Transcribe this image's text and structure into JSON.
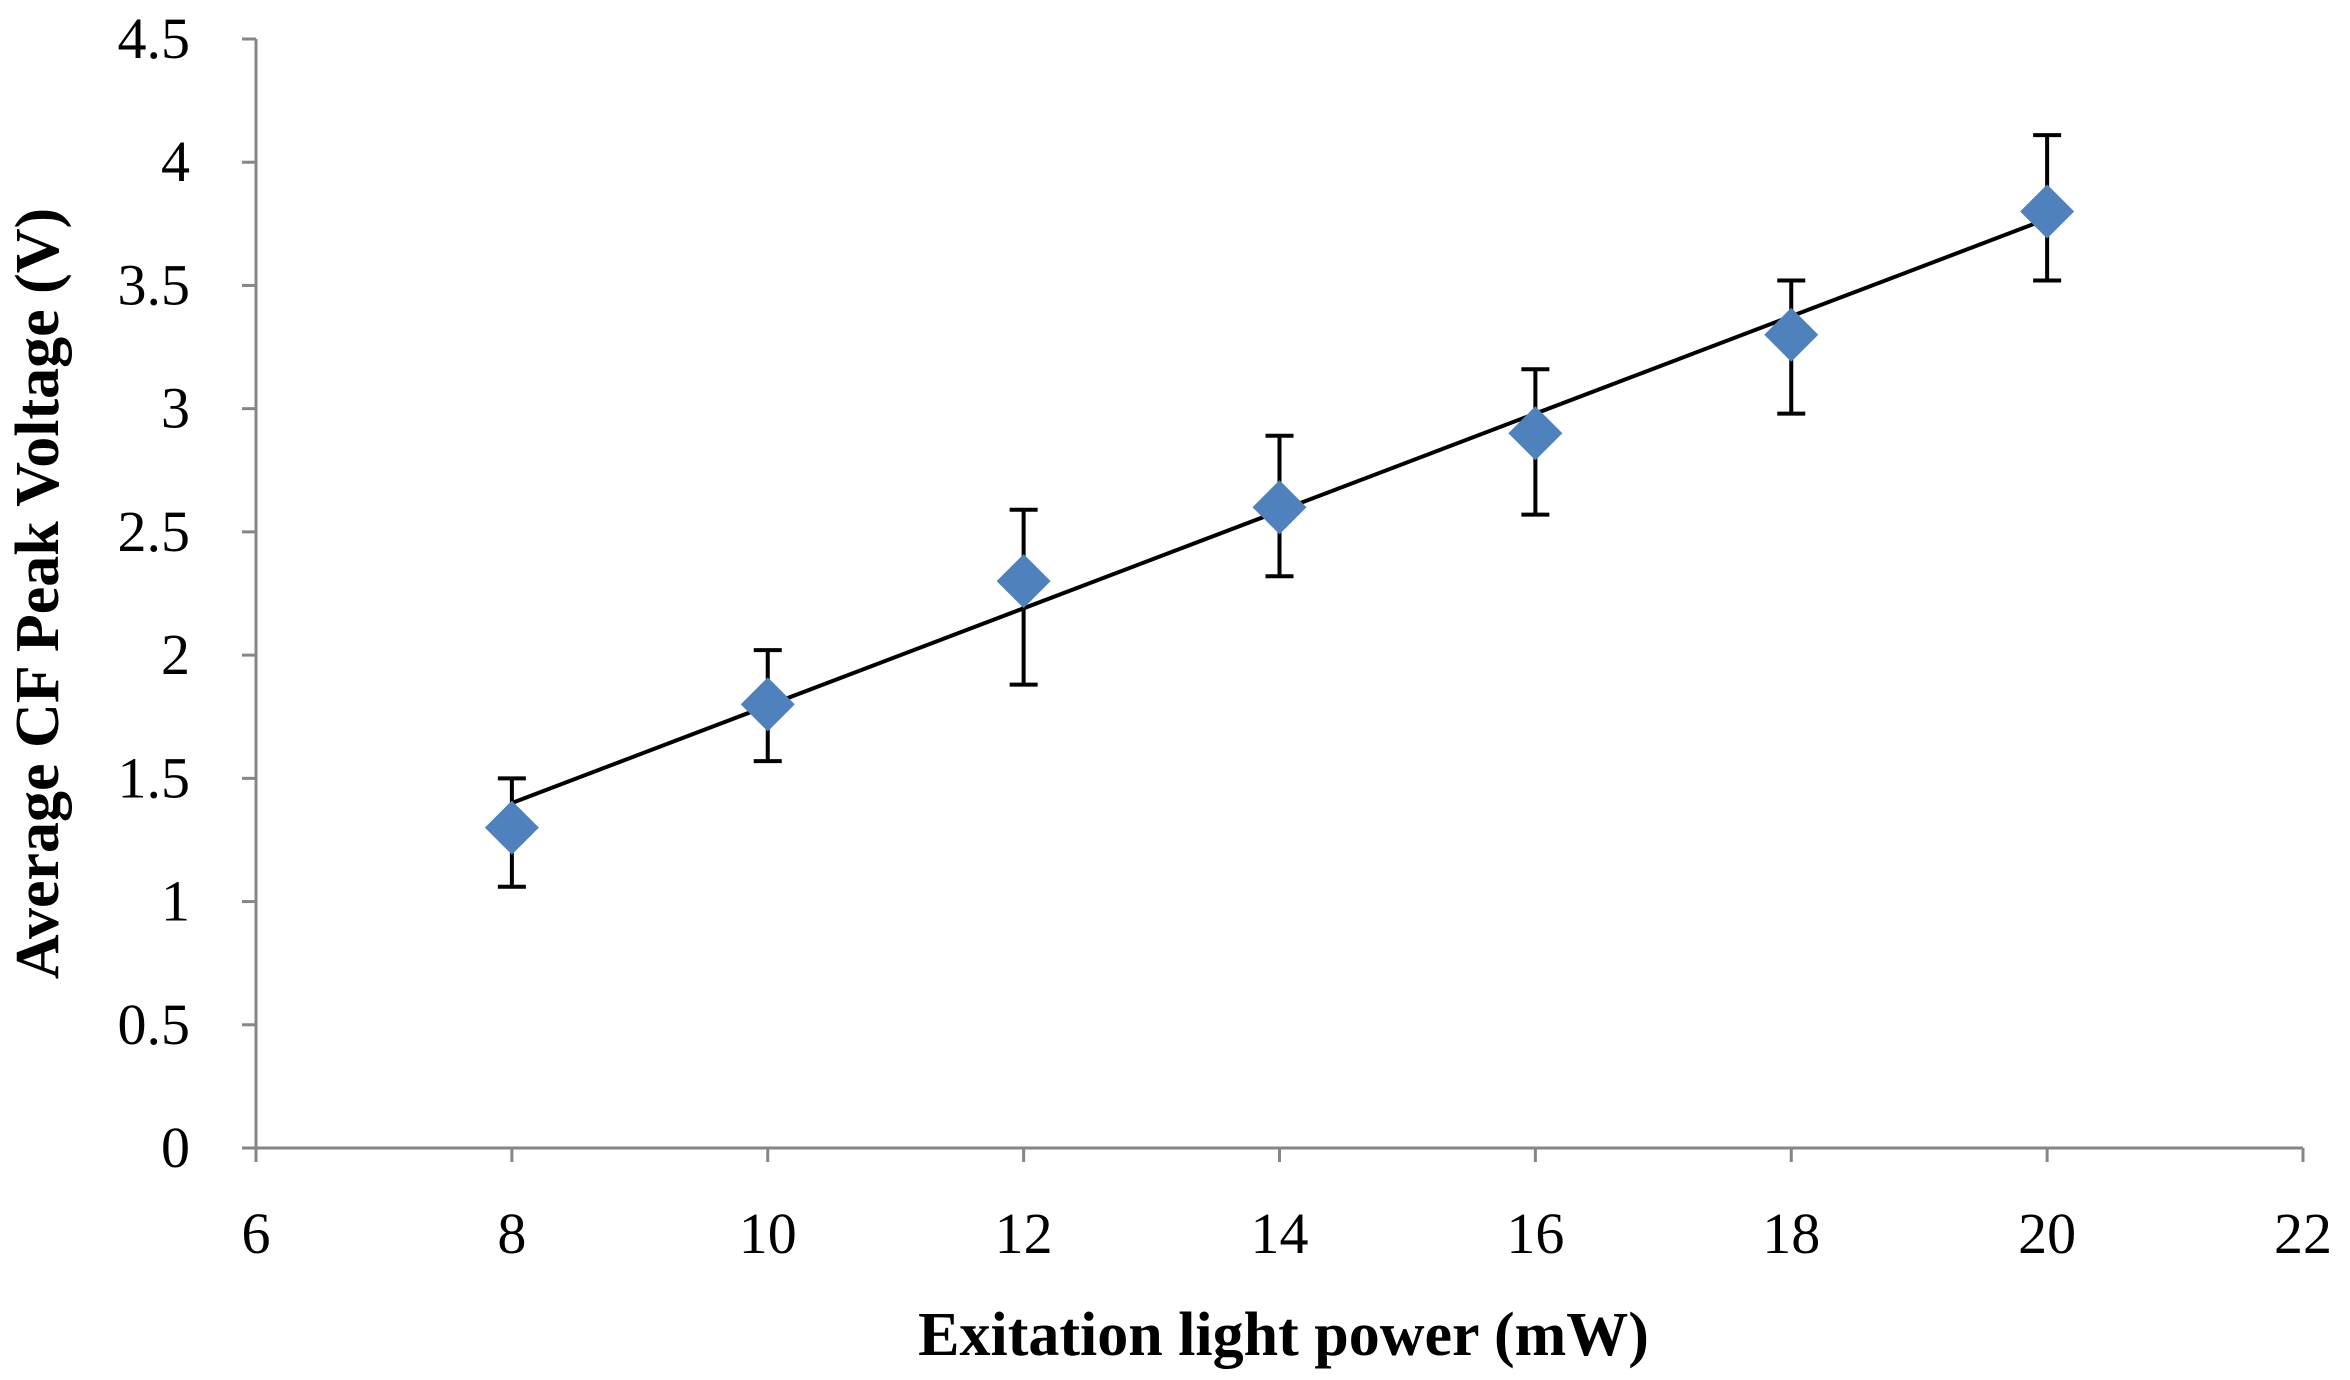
{
  "colors": {
    "marker": "#4F81BD",
    "trendline": "#000000",
    "error_bar": "#000000",
    "axis": "#868686"
  },
  "chart_data": {
    "type": "scatter",
    "title": "",
    "xlabel": "Exitation light power (mW)",
    "ylabel": "Average CF Peak Voltage (V)",
    "xlim": [
      6,
      22
    ],
    "ylim": [
      0,
      4.5
    ],
    "x_ticks": [
      6,
      8,
      10,
      12,
      14,
      16,
      18,
      20,
      22
    ],
    "y_ticks": [
      0,
      0.5,
      1,
      1.5,
      2,
      2.5,
      3,
      3.5,
      4,
      4.5
    ],
    "grid": false,
    "legend": "none",
    "marker": "diamond",
    "series": [
      {
        "name": "Average CF Peak Voltage",
        "x": [
          8,
          10,
          12,
          14,
          16,
          18,
          20
        ],
        "y": [
          1.3,
          1.8,
          2.3,
          2.6,
          2.9,
          3.3,
          3.8
        ],
        "error_upper": [
          1.5,
          2.02,
          2.59,
          2.89,
          3.16,
          3.52,
          4.11
        ],
        "error_lower": [
          1.06,
          1.57,
          1.88,
          2.32,
          2.57,
          2.98,
          3.52
        ]
      }
    ],
    "trendline": {
      "type": "linear",
      "x": [
        8,
        20
      ],
      "y": [
        1.4,
        3.77
      ]
    }
  }
}
